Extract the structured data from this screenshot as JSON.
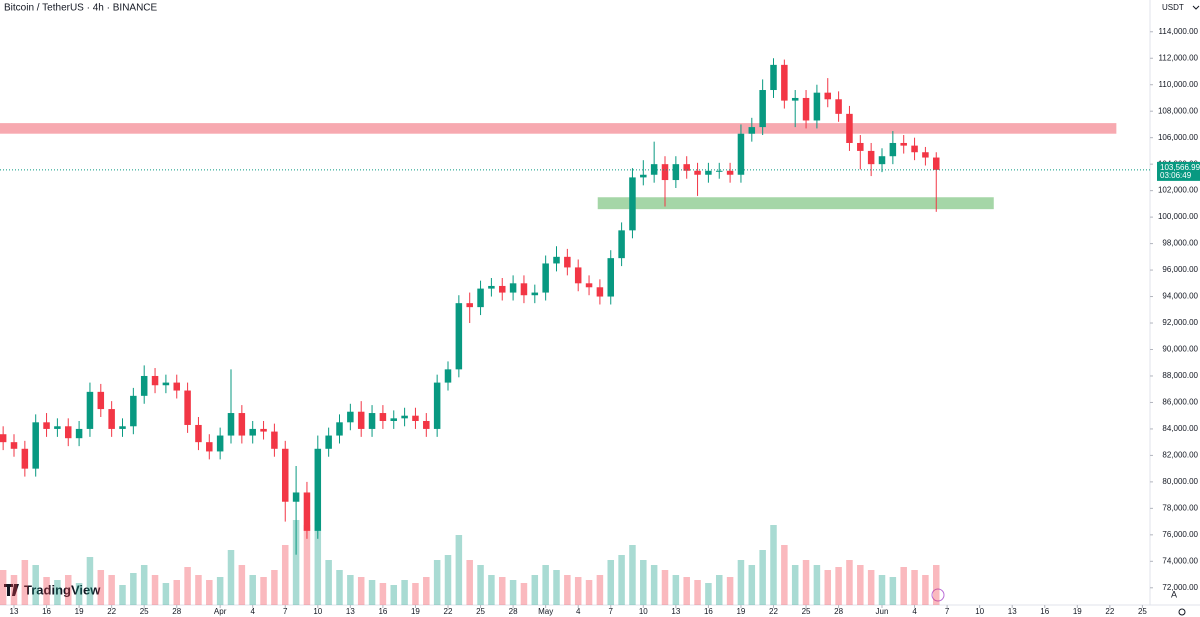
{
  "header": {
    "symbol": "Bitcoin / TetherUS · 4h · BINANCE",
    "currency": "USDT"
  },
  "branding": {
    "logo": "TradingView",
    "scale_button": "A"
  },
  "chart_data": {
    "type": "candlestick",
    "up_color": "#089981",
    "down_color": "#f23645",
    "grid": false,
    "x": [
      -1,
      0,
      1,
      2,
      3,
      4,
      5,
      6,
      7,
      8,
      9,
      10,
      11,
      12,
      13,
      14,
      15,
      16,
      17,
      18,
      19,
      20,
      21,
      22,
      23,
      24,
      25,
      26,
      27,
      28,
      29,
      30,
      31,
      32,
      33,
      34,
      35,
      36,
      37,
      38,
      39,
      40,
      41,
      42,
      43,
      44,
      45,
      46,
      47,
      48,
      49,
      50,
      51,
      52,
      53,
      54,
      55,
      56,
      57,
      58,
      59,
      60,
      61,
      62,
      63,
      64,
      65,
      66,
      67,
      68,
      69,
      70,
      71,
      72,
      73,
      74,
      75,
      76,
      77,
      78,
      79,
      80,
      81,
      82,
      83,
      84,
      85
    ],
    "open": [
      83600,
      83000,
      82500,
      81000,
      84500,
      84000,
      84200,
      83300,
      84000,
      86800,
      85500,
      84000,
      84200,
      86500,
      88000,
      87300,
      87500,
      86900,
      84300,
      83000,
      82300,
      83500,
      85200,
      83500,
      84000,
      83800,
      82500,
      78500,
      79200,
      76300,
      82500,
      83500,
      84500,
      85300,
      84000,
      85200,
      84600,
      84800,
      85000,
      84600,
      84000,
      87500,
      88500,
      93500,
      93200,
      94600,
      94800,
      94300,
      95000,
      94100,
      94300,
      96500,
      97000,
      96200,
      95000,
      94700,
      94000,
      96900,
      99000,
      103000,
      103200,
      104000,
      102800,
      104000,
      103500,
      103200,
      103500,
      103500,
      103200,
      106300,
      106800,
      109600,
      111500,
      108800,
      109000,
      107300,
      109400,
      108900,
      107800,
      105600,
      105000,
      104000,
      104600,
      105600,
      105400,
      104900,
      104500
    ],
    "high": [
      84200,
      83600,
      83100,
      85100,
      85200,
      84800,
      84800,
      84600,
      87500,
      87400,
      86100,
      84800,
      87100,
      88800,
      88600,
      88100,
      88100,
      87500,
      84900,
      83600,
      84100,
      88500,
      85800,
      84600,
      84600,
      84400,
      83100,
      81200,
      80000,
      83500,
      84100,
      85100,
      85900,
      86100,
      85800,
      85800,
      85400,
      85600,
      85600,
      85200,
      88100,
      89100,
      94100,
      94300,
      95200,
      95400,
      95400,
      95600,
      95600,
      94900,
      97100,
      97800,
      97600,
      96800,
      95600,
      95300,
      97500,
      99600,
      103700,
      104300,
      105700,
      104600,
      104600,
      104600,
      104100,
      104100,
      104100,
      104100,
      107000,
      107500,
      110400,
      112000,
      111900,
      109600,
      109600,
      110000,
      110500,
      109500,
      108400,
      106200,
      105600,
      105200,
      106500,
      106200,
      106000,
      105300,
      104900
    ],
    "low": [
      82400,
      81900,
      80400,
      80400,
      83400,
      83400,
      82700,
      82700,
      83400,
      84900,
      83400,
      83400,
      83600,
      85900,
      86700,
      86700,
      86300,
      83700,
      82400,
      81700,
      81700,
      82900,
      82900,
      82900,
      83200,
      81900,
      77000,
      74500,
      75700,
      75700,
      81900,
      82900,
      83900,
      83400,
      83400,
      84000,
      84000,
      84200,
      84000,
      83400,
      83400,
      86900,
      87900,
      92000,
      92600,
      94000,
      93700,
      93700,
      93500,
      93500,
      93700,
      95900,
      95600,
      94400,
      94100,
      93400,
      93400,
      96300,
      98400,
      102400,
      102600,
      100800,
      102200,
      102900,
      101600,
      102600,
      102900,
      102600,
      102600,
      105700,
      106200,
      109000,
      108200,
      106800,
      106700,
      106700,
      108300,
      107200,
      105000,
      103600,
      103100,
      103400,
      104000,
      104800,
      104300,
      103900,
      100400
    ],
    "close": [
      83000,
      82500,
      81000,
      84500,
      84000,
      84200,
      83300,
      84000,
      86800,
      85500,
      84000,
      84200,
      86500,
      88000,
      87300,
      87500,
      86900,
      84300,
      83000,
      82300,
      83500,
      85200,
      83500,
      84000,
      83800,
      82500,
      78500,
      79200,
      76300,
      82500,
      83500,
      84500,
      85300,
      84000,
      85200,
      84600,
      84800,
      85000,
      84600,
      84000,
      87500,
      88500,
      93500,
      93200,
      94600,
      94800,
      94300,
      95000,
      94100,
      94300,
      96500,
      97000,
      96200,
      95000,
      94700,
      94000,
      96900,
      99000,
      103000,
      103200,
      104000,
      102800,
      104000,
      103500,
      103200,
      103500,
      103500,
      103200,
      106300,
      106800,
      109600,
      111500,
      108800,
      109000,
      107300,
      109400,
      108900,
      107800,
      105600,
      105000,
      104000,
      104600,
      105600,
      105400,
      104900,
      104500,
      103566.99
    ],
    "volume": [
      35,
      30,
      45,
      40,
      28,
      25,
      30,
      22,
      48,
      35,
      30,
      20,
      32,
      40,
      30,
      22,
      25,
      38,
      30,
      25,
      28,
      55,
      40,
      30,
      28,
      35,
      60,
      85,
      80,
      75,
      45,
      35,
      30,
      28,
      25,
      22,
      20,
      25,
      22,
      28,
      45,
      50,
      70,
      45,
      40,
      30,
      28,
      25,
      22,
      30,
      40,
      35,
      30,
      28,
      25,
      30,
      45,
      50,
      60,
      45,
      40,
      35,
      30,
      28,
      25,
      22,
      30,
      28,
      45,
      40,
      55,
      80,
      60,
      40,
      45,
      40,
      35,
      38,
      45,
      40,
      35,
      30,
      28,
      38,
      35,
      30,
      40
    ],
    "volume_ylim": [
      0,
      100
    ],
    "xlim": [
      -1.29,
      104.7
    ],
    "ylim": [
      70700,
      116400
    ],
    "xticks": [
      {
        "value": 0,
        "label": "13"
      },
      {
        "value": 3,
        "label": "16"
      },
      {
        "value": 6,
        "label": "19"
      },
      {
        "value": 9,
        "label": "22"
      },
      {
        "value": 12,
        "label": "25"
      },
      {
        "value": 15,
        "label": "28"
      },
      {
        "value": 19,
        "label": "Apr"
      },
      {
        "value": 22,
        "label": "4"
      },
      {
        "value": 25,
        "label": "7"
      },
      {
        "value": 28,
        "label": "10"
      },
      {
        "value": 31,
        "label": "13"
      },
      {
        "value": 34,
        "label": "16"
      },
      {
        "value": 37,
        "label": "19"
      },
      {
        "value": 40,
        "label": "22"
      },
      {
        "value": 43,
        "label": "25"
      },
      {
        "value": 46,
        "label": "28"
      },
      {
        "value": 49,
        "label": "May"
      },
      {
        "value": 52,
        "label": "4"
      },
      {
        "value": 55,
        "label": "7"
      },
      {
        "value": 58,
        "label": "10"
      },
      {
        "value": 61,
        "label": "13"
      },
      {
        "value": 64,
        "label": "16"
      },
      {
        "value": 67,
        "label": "19"
      },
      {
        "value": 70,
        "label": "22"
      },
      {
        "value": 73,
        "label": "25"
      },
      {
        "value": 76,
        "label": "28"
      },
      {
        "value": 80,
        "label": "Jun"
      },
      {
        "value": 83,
        "label": "4"
      },
      {
        "value": 86,
        "label": "7"
      },
      {
        "value": 89,
        "label": "10"
      },
      {
        "value": 92,
        "label": "13"
      },
      {
        "value": 95,
        "label": "16"
      },
      {
        "value": 98,
        "label": "19"
      },
      {
        "value": 101,
        "label": "22"
      },
      {
        "value": 104,
        "label": "25"
      }
    ],
    "yticks": [
      {
        "value": 72000,
        "label": "72,000.00"
      },
      {
        "value": 74000,
        "label": "74,000.00"
      },
      {
        "value": 76000,
        "label": "76,000.00"
      },
      {
        "value": 78000,
        "label": "78,000.00"
      },
      {
        "value": 80000,
        "label": "80,000.00"
      },
      {
        "value": 82000,
        "label": "82,000.00"
      },
      {
        "value": 84000,
        "label": "84,000.00"
      },
      {
        "value": 86000,
        "label": "86,000.00"
      },
      {
        "value": 88000,
        "label": "88,000.00"
      },
      {
        "value": 90000,
        "label": "90,000.00"
      },
      {
        "value": 92000,
        "label": "92,000.00"
      },
      {
        "value": 94000,
        "label": "94,000.00"
      },
      {
        "value": 96000,
        "label": "96,000.00"
      },
      {
        "value": 98000,
        "label": "98,000.00"
      },
      {
        "value": 100000,
        "label": "100,000.00"
      },
      {
        "value": 102000,
        "label": "102,000.00"
      },
      {
        "value": 104000,
        "label": "104,000.00"
      },
      {
        "value": 106000,
        "label": "106,000.00"
      },
      {
        "value": 108000,
        "label": "108,000.00"
      },
      {
        "value": 110000,
        "label": "110,000.00"
      },
      {
        "value": 112000,
        "label": "112,000.00"
      },
      {
        "value": 114000,
        "label": "114,000.00"
      }
    ],
    "zones": [
      {
        "color": "#f7a9b0",
        "x": [
          -1.29,
          101.6
        ],
        "y": [
          106300,
          107100
        ]
      },
      {
        "color": "#a5d6a7",
        "x": [
          53.8,
          90.3
        ],
        "y": [
          100600,
          101500
        ]
      }
    ],
    "last_price": {
      "value": 103566.99,
      "label": "103,566.99",
      "countdown": "03:06:49",
      "color": "#089981"
    }
  }
}
